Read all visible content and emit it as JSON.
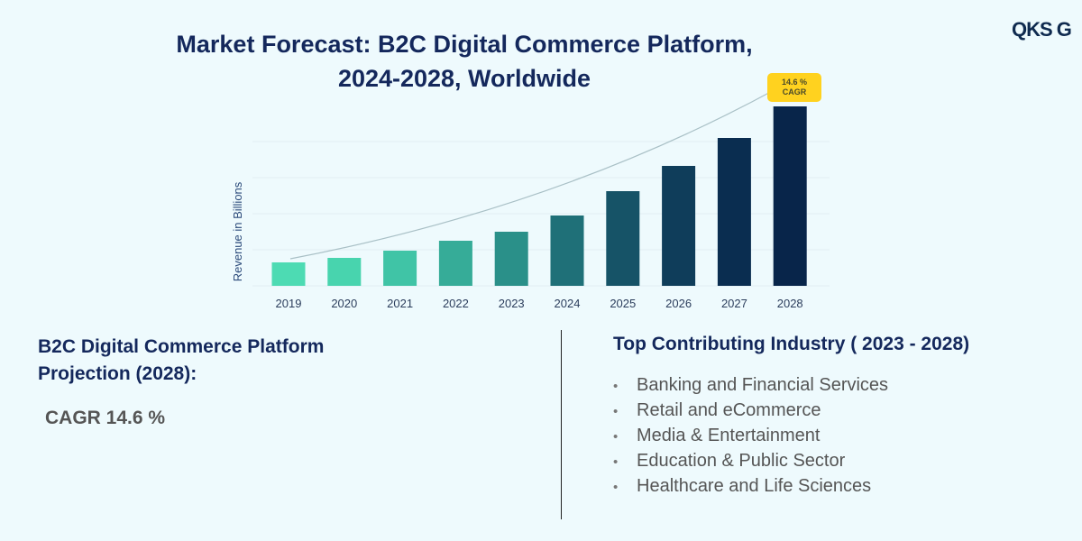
{
  "logo_text": "QKS G",
  "chart_data": {
    "type": "bar",
    "title": "Market Forecast: B2C Digital Commerce Platform, 2024-2028, Worldwide",
    "title_lines": [
      "Market Forecast: B2C Digital Commerce Platform,",
      "2024-2028, Worldwide"
    ],
    "ylabel": "Revenue in Billions",
    "xlabel": "",
    "categories": [
      "2019",
      "2020",
      "2021",
      "2022",
      "2023",
      "2024",
      "2025",
      "2026",
      "2027",
      "2028"
    ],
    "values": [
      26,
      31,
      39,
      50,
      60,
      78,
      105,
      133,
      164,
      199
    ],
    "ylim": [
      0,
      200
    ],
    "y_tick_labels_shown": false,
    "grid": true,
    "bar_colors": [
      "#4ddbb3",
      "#48d4ae",
      "#40c4a6",
      "#36ac98",
      "#2a9089",
      "#1f7078",
      "#165367",
      "#0f3d5a",
      "#0a2d50",
      "#08254a"
    ],
    "trend_curve": true,
    "annotation": {
      "lines": [
        "14.6 %",
        "CAGR"
      ],
      "color": "#ffd21f"
    }
  },
  "left": {
    "heading_lines": [
      "B2C Digital Commerce Platform",
      "Projection (2028):"
    ],
    "cagr": "CAGR 14.6 %"
  },
  "right": {
    "heading": "Top Contributing Industry ( 2023 - 2028)",
    "items": [
      "Banking and Financial Services",
      "Retail and eCommerce",
      "Media & Entertainment",
      "Education & Public Sector",
      "Healthcare and Life Sciences"
    ]
  }
}
